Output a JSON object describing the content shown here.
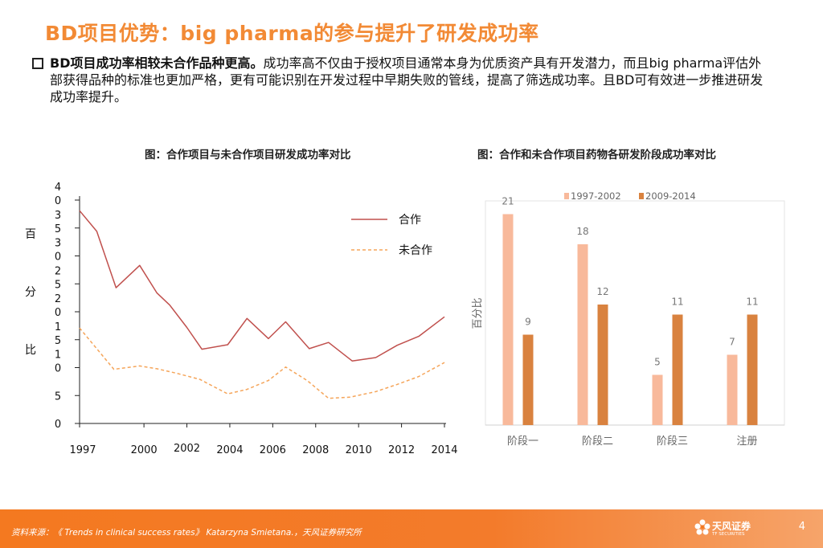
{
  "slide": {
    "title": "BD项目优势：big pharma的参与提升了研发成功率",
    "bullet_lead": "BD项目成功率相较未合作品种更高。",
    "bullet_body": "成功率高不仅由于授权项目通常本身为优质资产具有开发潜力，而且big  pharma评估外部获得品种的标准也更加严格，更有可能识别在开发过程中早期失败的管线，提高了筛选成功率。且BD可有效进一步推进研发成功率提升。"
  },
  "chart_data": [
    {
      "type": "line",
      "title": "图：合作项目与未合作项目研发成功率对比",
      "ylabel": "百分比",
      "ylim": [
        0,
        40
      ],
      "yticks": [
        0,
        5,
        10,
        15,
        20,
        25,
        30,
        35,
        40
      ],
      "xlim": [
        1997,
        2014
      ],
      "xticks": [
        1997,
        2000,
        2002,
        2004,
        2006,
        2008,
        2010,
        2012,
        2014
      ],
      "series": [
        {
          "name": "合作",
          "color": "#c0504d",
          "dash": false,
          "x": [
            1997,
            1997.8,
            1998.7,
            1999.8,
            2000.6,
            2001.2,
            2002.0,
            2002.7,
            2003.9,
            2004.8,
            2005.8,
            2006.6,
            2007.7,
            2008.6,
            2009.7,
            2010.8,
            2011.8,
            2012.8,
            2014.0
          ],
          "y": [
            38.1,
            34.4,
            24.3,
            28.3,
            23.4,
            21.2,
            17.2,
            13.3,
            14.1,
            18.8,
            15.2,
            18.2,
            13.4,
            14.5,
            11.2,
            11.8,
            14.0,
            15.6,
            19.1
          ]
        },
        {
          "name": "未合作",
          "color": "#f5a55a",
          "dash": true,
          "x": [
            1997,
            1998.6,
            1999.8,
            2000.6,
            2001.5,
            2002.6,
            2003.9,
            2004.8,
            2005.8,
            2006.6,
            2007.6,
            2008.6,
            2009.6,
            2010.8,
            2011.8,
            2012.8,
            2014.0
          ],
          "y": [
            17.1,
            9.7,
            10.3,
            9.8,
            9.0,
            7.9,
            5.3,
            6.1,
            7.7,
            10.1,
            7.7,
            4.5,
            4.7,
            5.7,
            7.0,
            8.4,
            10.9
          ]
        }
      ]
    },
    {
      "type": "bar",
      "title": "图：合作和未合作项目药物各研发阶段成功率对比",
      "ylabel": "百分比",
      "categories": [
        "阶段一",
        "阶段二",
        "阶段三",
        "注册"
      ],
      "ylim": [
        0,
        25
      ],
      "series": [
        {
          "name": "1997-2002",
          "color": "#f8b99b",
          "values": [
            21,
            18,
            5,
            7
          ]
        },
        {
          "name": "2009-2014",
          "color": "#d9823f",
          "values": [
            9,
            12,
            11,
            11
          ]
        }
      ]
    }
  ],
  "footer": {
    "source": "资料来源：《 Trends in clinical success rates》 Katarzyna Smietana.，天风证券研究所",
    "logo_text": "天风证券",
    "logo_sub": "TF SECURITIES",
    "page_number": "4"
  }
}
